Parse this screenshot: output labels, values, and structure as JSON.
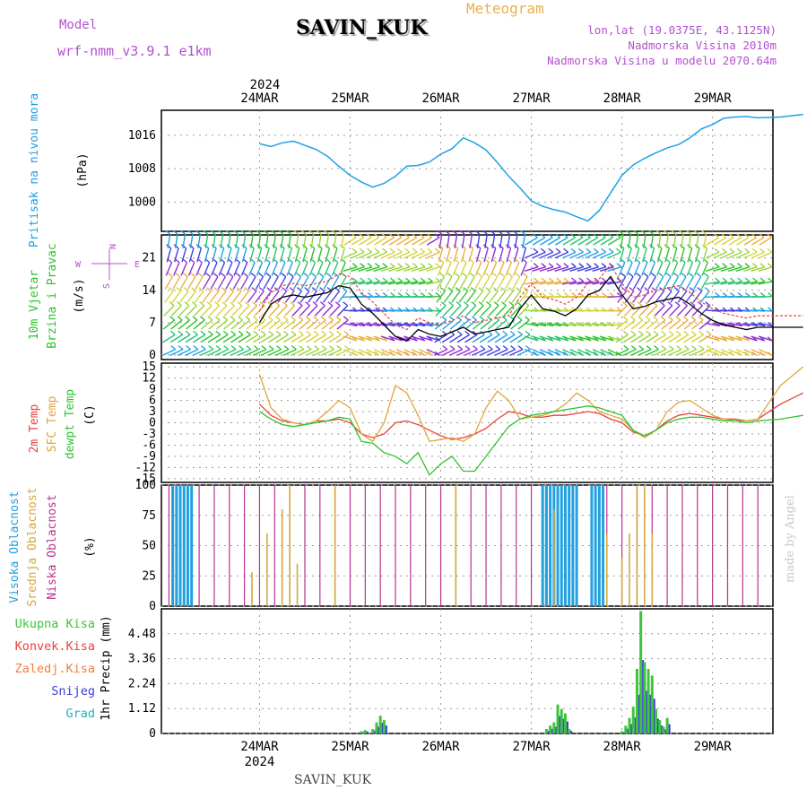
{
  "header": {
    "title": "SAVIN_KUK",
    "model_label": "Model",
    "model_name": "wrf-nmm_v3.9.1 e1km",
    "meteogram_label": "Meteogram",
    "lonlat": "lon,lat (19.0375E, 43.1125N)",
    "elevation": "Nadmorska Visina 2010m",
    "model_elevation": "Nadmorska Visina u modelu 2070.64m"
  },
  "footer": {
    "station": "SAVIN_KUK",
    "watermark": "made by Angel"
  },
  "colors": {
    "pressure": "#1ea0e6",
    "temp2m": "#e8413c",
    "sfc": "#e0a63a",
    "dewpt": "#2ec42e",
    "high_cloud": "#22a0e0",
    "mid_cloud": "#d4a83c",
    "low_cloud": "#b8338f",
    "total": "#3cc43c",
    "konvek": "#e8413c",
    "zaledj": "#f07d3c",
    "snow": "#3c3cdc",
    "grad": "#22b4b4"
  },
  "chart_data": [
    {
      "type": "line",
      "panel": "pressure",
      "ylabel_lines": [
        "Pritisak na nivou mora",
        "(hPa)"
      ],
      "ylim": [
        993,
        1022
      ],
      "yticks": [
        "1016",
        "1008",
        "1000"
      ],
      "xlabels_top": [
        "24MAR",
        "25MAR",
        "26MAR",
        "27MAR",
        "28MAR",
        "29MAR"
      ],
      "year_label": "2024",
      "x_hours": [
        0,
        3,
        6,
        9,
        12,
        15,
        18,
        21,
        24,
        27,
        30,
        33,
        36,
        39,
        42,
        45,
        48,
        51,
        54,
        57,
        60,
        63,
        66,
        69,
        72,
        75,
        78,
        81,
        84,
        87,
        90,
        93,
        96,
        99,
        102,
        105,
        108,
        111,
        114,
        117,
        120,
        123,
        126,
        129,
        132,
        138,
        144
      ],
      "series": [
        {
          "name": "",
          "values": [
            1014,
            1013.3,
            1014.2,
            1014.6,
            1013.6,
            1012.6,
            1011,
            1008.6,
            1006.4,
            1004.8,
            1003.6,
            1004.5,
            1006.2,
            1008.6,
            1008.8,
            1009.6,
            1011.5,
            1012.8,
            1015.4,
            1014.2,
            1012.5,
            1009.5,
            1006.2,
            1003.4,
            1000.3,
            999,
            998.2,
            997.6,
            996.5,
            995.5,
            998,
            1002.2,
            1006.4,
            1008.9,
            1010.5,
            1011.8,
            1013,
            1013.8,
            1015.4,
            1017.5,
            1018.6,
            1020.1,
            1020.4,
            1020.5,
            1020.2,
            1020.4,
            1021
          ]
        }
      ]
    },
    {
      "type": "line",
      "panel": "wind",
      "ylabel_lines": [
        "10m Vjetar",
        "Brzina i Pravac",
        "(m/s)"
      ],
      "direction_legend": [
        "N",
        "W",
        "E",
        "S"
      ],
      "ylim": [
        -1,
        26
      ],
      "yticks": [
        "21",
        "14",
        "7",
        "0"
      ],
      "series": [
        {
          "name": "",
          "values": [
            7,
            11,
            12.5,
            13,
            12.5,
            13,
            13.5,
            15,
            14.5,
            11,
            9,
            6.5,
            4,
            3,
            5.5,
            4.5,
            4,
            5,
            6,
            4.5,
            5,
            5.5,
            6,
            10,
            13,
            10,
            9.5,
            8.5,
            10,
            13,
            14,
            17,
            13,
            10,
            10.5,
            11.5,
            12,
            12.5,
            11,
            9,
            7.5,
            6.5,
            6,
            5.5,
            6,
            6,
            6
          ]
        }
      ]
    },
    {
      "type": "line",
      "panel": "temperature",
      "ylabel_lines": [
        "2m Temp",
        "SFC Temp",
        "dewpt Temp",
        "(C)"
      ],
      "ylim": [
        -16,
        16
      ],
      "yticks": [
        "15",
        "12",
        "9",
        "6",
        "3",
        "0",
        "-3",
        "-6",
        "-9",
        "-12",
        "-15"
      ],
      "series": [
        {
          "name": "2m Temp",
          "values": [
            5,
            2,
            0.5,
            0,
            -0.5,
            0.5,
            0.5,
            1,
            0,
            -3,
            -4,
            -3,
            0,
            0.5,
            -0.5,
            -2,
            -3.5,
            -4.5,
            -4,
            -3,
            -1.5,
            1,
            3,
            2.5,
            1.5,
            1.5,
            2,
            2,
            2.5,
            3,
            2.5,
            1,
            0,
            -2.5,
            -3.5,
            -2,
            0.5,
            2,
            2.5,
            2,
            1.5,
            1,
            1,
            0.5,
            1,
            5,
            8
          ]
        },
        {
          "name": "SFC Temp",
          "values": [
            13,
            4,
            1,
            0,
            -0.5,
            0.5,
            3,
            6,
            4,
            -3,
            -5,
            0,
            10,
            8,
            2,
            -5,
            -4.5,
            -4,
            -5,
            -3,
            4,
            8.5,
            6,
            1,
            1.5,
            2,
            3,
            5,
            8,
            6,
            3,
            2,
            1,
            -2,
            -4,
            -2,
            3,
            5.5,
            6,
            4,
            2,
            1,
            0.5,
            0.5,
            1,
            10,
            15
          ]
        },
        {
          "name": "dewpt Temp",
          "values": [
            3,
            1,
            -0.5,
            -1,
            -0.5,
            0,
            0.5,
            1.5,
            1,
            -5,
            -5.5,
            -8,
            -9,
            -11,
            -8,
            -14,
            -11,
            -9,
            -13,
            -13,
            -9,
            -5,
            -1,
            1,
            2,
            2.5,
            3,
            3.5,
            4,
            4.5,
            4,
            3,
            2,
            -2,
            -3.5,
            -2,
            0,
            1,
            1.5,
            1.5,
            1,
            0.5,
            0.5,
            0,
            0.5,
            1,
            2
          ]
        }
      ]
    },
    {
      "type": "bar",
      "panel": "cloud",
      "ylabel_lines": [
        "Visoka Oblacnost",
        "Srednja Oblacnost",
        "Niska Oblacnost",
        "(%)"
      ],
      "ylim": [
        0,
        100
      ],
      "yticks": [
        "100",
        "75",
        "50",
        "25",
        "0"
      ]
    },
    {
      "type": "bar",
      "panel": "precip",
      "ylabel_lines": [
        "1hr Precip (mm)"
      ],
      "legend": [
        "Ukupna Kisa",
        "Konvek.Kisa",
        "Zaledj.Kisa",
        "Snijeg",
        "Grad"
      ],
      "ylim": [
        0,
        5.6
      ],
      "yticks": [
        "4.48",
        "3.36",
        "2.24",
        "1.12",
        "0"
      ],
      "xlabels_bottom": [
        "24MAR",
        "25MAR",
        "26MAR",
        "27MAR",
        "28MAR",
        "29MAR"
      ],
      "year_label": "2024",
      "bars": [
        {
          "hour": 27,
          "value": 0.1
        },
        {
          "hour": 28,
          "value": 0.15
        },
        {
          "hour": 30,
          "value": 0.2
        },
        {
          "hour": 31,
          "value": 0.5
        },
        {
          "hour": 32,
          "value": 0.8
        },
        {
          "hour": 33,
          "value": 0.6
        },
        {
          "hour": 76,
          "value": 0.2
        },
        {
          "hour": 77,
          "value": 0.35
        },
        {
          "hour": 78,
          "value": 0.5
        },
        {
          "hour": 79,
          "value": 1.3
        },
        {
          "hour": 80,
          "value": 1.1
        },
        {
          "hour": 81,
          "value": 0.9
        },
        {
          "hour": 82,
          "value": 0.2
        },
        {
          "hour": 96,
          "value": 0.1
        },
        {
          "hour": 97,
          "value": 0.35
        },
        {
          "hour": 98,
          "value": 0.7
        },
        {
          "hour": 99,
          "value": 1.2
        },
        {
          "hour": 100,
          "value": 2.9
        },
        {
          "hour": 101,
          "value": 5.5
        },
        {
          "hour": 102,
          "value": 3.2
        },
        {
          "hour": 103,
          "value": 2.9
        },
        {
          "hour": 104,
          "value": 2.6
        },
        {
          "hour": 105,
          "value": 1.1
        },
        {
          "hour": 106,
          "value": 0.6
        },
        {
          "hour": 107,
          "value": 0.3
        },
        {
          "hour": 108,
          "value": 0.7
        }
      ]
    }
  ]
}
